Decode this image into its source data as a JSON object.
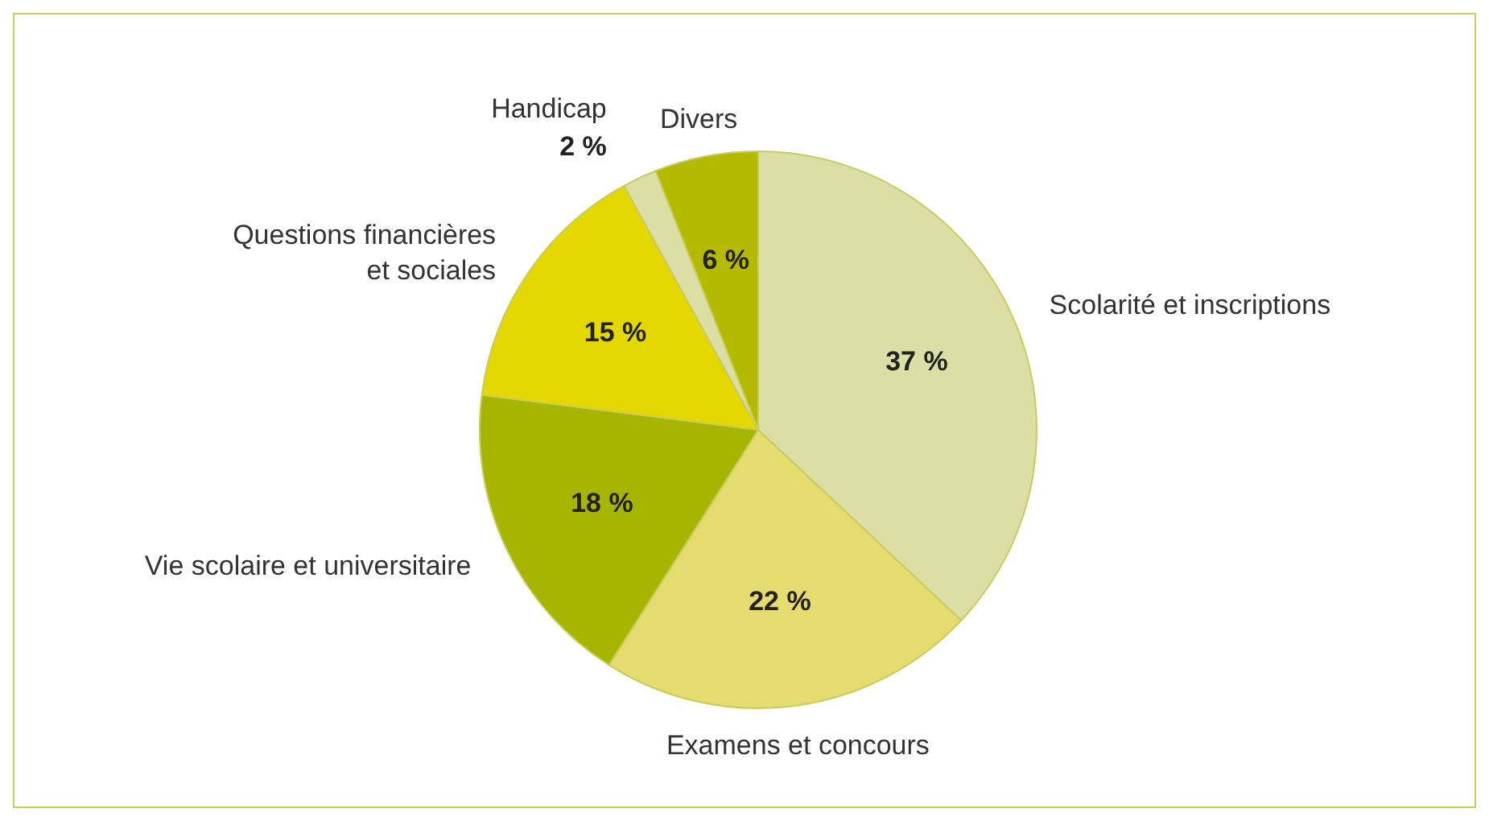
{
  "chart_data": {
    "type": "pie",
    "categories": [
      "Scolarité et inscriptions",
      "Examens et concours",
      "Vie scolaire et universitaire",
      "Questions financières\net sociales",
      "Handicap",
      "Divers"
    ],
    "values": [
      37,
      22,
      18,
      15,
      2,
      6
    ],
    "value_labels": [
      "37 %",
      "22 %",
      "18 %",
      "15 %",
      "2 %",
      "6 %"
    ],
    "colors": [
      "#dbdfa6",
      "#e4dc6f",
      "#a6b500",
      "#e4d800",
      "#dbdfa6",
      "#b4ba00"
    ]
  }
}
